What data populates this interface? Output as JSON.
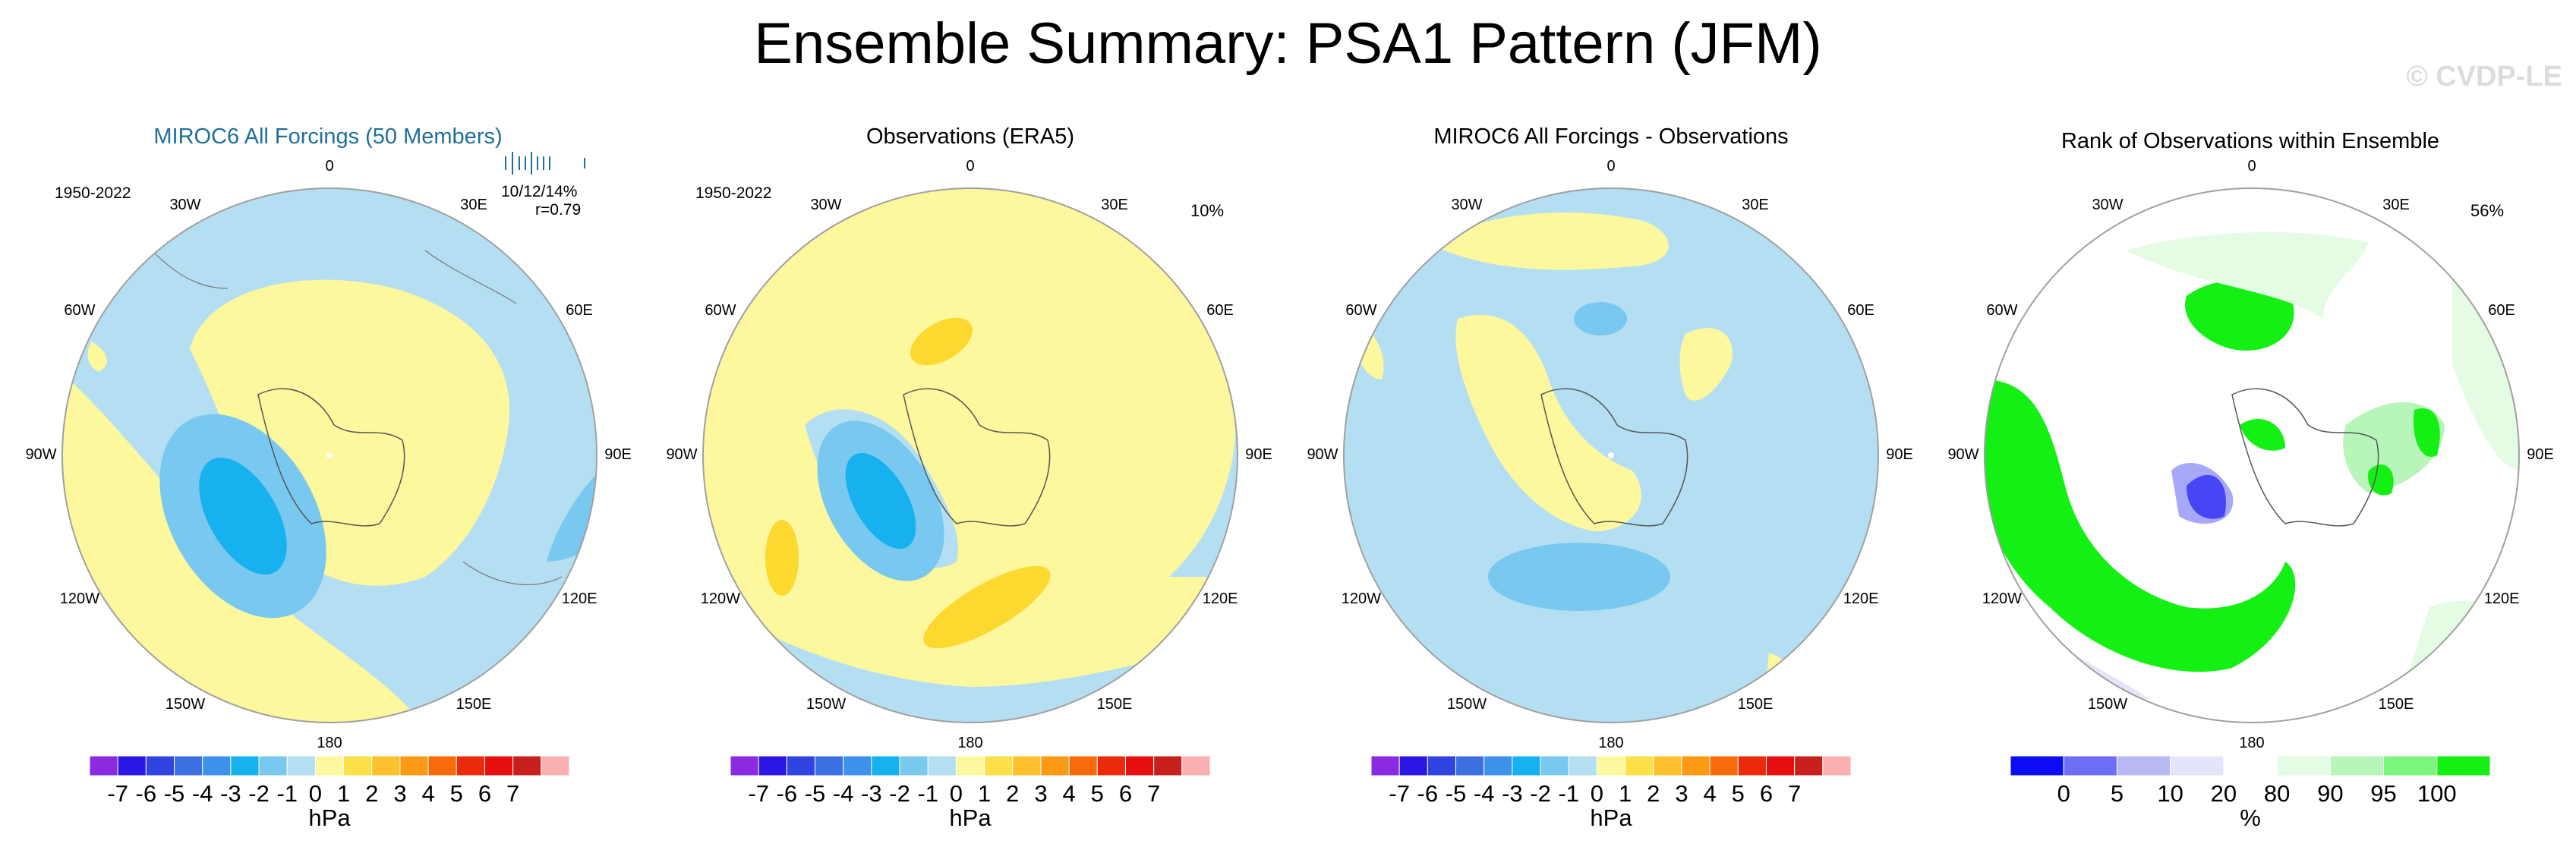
{
  "page": {
    "title": "Ensemble Summary: PSA1 Pattern (JFM)",
    "watermark": "© CVDP-LE"
  },
  "longitude_labels": [
    "0",
    "30E",
    "60E",
    "90E",
    "120E",
    "150E",
    "180",
    "150W",
    "120W",
    "90W",
    "60W",
    "30W"
  ],
  "panels": [
    {
      "title": "MIROC6 All Forcings (50 Members)",
      "period": "1950-2022",
      "stats": "10/12/14%",
      "corr": "r=0.79",
      "field": "model"
    },
    {
      "title": "Observations (ERA5)",
      "period": "1950-2022",
      "stats": "10%",
      "field": "obs"
    },
    {
      "title": "MIROC6 All Forcings - Observations",
      "field": "diff"
    },
    {
      "title": "Rank of Observations within Ensemble",
      "stats": "56%",
      "field": "rank"
    }
  ],
  "colorbar_hpa": {
    "unit": "hPa",
    "labels": [
      "-7",
      "-6",
      "-5",
      "-4",
      "-3",
      "-2",
      "-1",
      "0",
      "1",
      "2",
      "3",
      "4",
      "5",
      "6",
      "7"
    ],
    "colors": [
      "#8a2be2",
      "#2a17e6",
      "#2f44e0",
      "#3c6fe0",
      "#3c91ea",
      "#16b1ee",
      "#78c8f0",
      "#b4dff2",
      "#fdf79d",
      "#fde048",
      "#fdc02e",
      "#fb9a14",
      "#f86a0a",
      "#ea2a0a",
      "#e61010",
      "#c8201d",
      "#fab0b0"
    ]
  },
  "colorbar_rank": {
    "unit": "%",
    "labels": [
      "0",
      "5",
      "10",
      "20",
      "80",
      "90",
      "95",
      "100"
    ],
    "colors": [
      "#0c0cf5",
      "#6e6ef5",
      "#b8b8f5",
      "#e4e4fb",
      "#ffffff",
      "#e4fbe4",
      "#b8f5b8",
      "#7cf57c",
      "#14f014"
    ]
  },
  "fields": {
    "model_colors": {
      "bg": "#b4dff2",
      "pos": "#fdf79d",
      "neg1": "#78c8f0",
      "neg2": "#16b1ee"
    },
    "rank_colors": {
      "green": "#14f014",
      "lightgreen": "#b8f5b8",
      "palegreen": "#e4fbe4",
      "blue": "#0c0cf5",
      "lightblue": "#b8b8f5"
    }
  }
}
